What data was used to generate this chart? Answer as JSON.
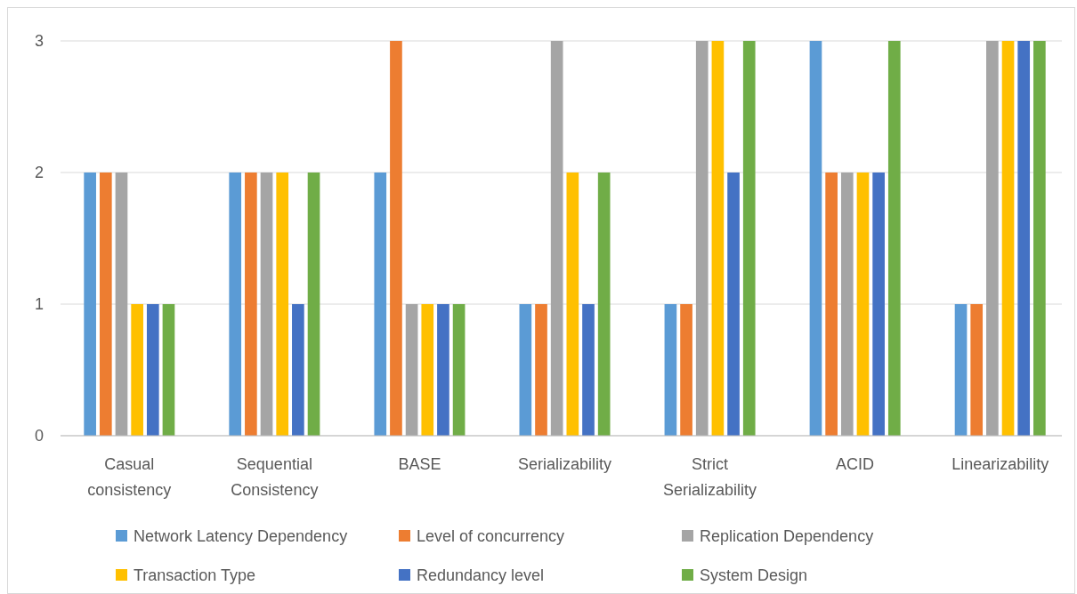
{
  "chart_data": {
    "type": "bar",
    "categories": [
      "Casual consistency",
      "Sequential Consistency",
      "BASE",
      "Serializability",
      "Strict Serializability",
      "ACID",
      "Linearizability"
    ],
    "series": [
      {
        "name": "Network Latency Dependency",
        "color": "#5b9bd5",
        "values": [
          2,
          2,
          2,
          1,
          1,
          3,
          1
        ]
      },
      {
        "name": "Level of concurrency",
        "color": "#ed7d31",
        "values": [
          2,
          2,
          3,
          1,
          1,
          2,
          1
        ]
      },
      {
        "name": "Replication Dependency",
        "color": "#a5a5a5",
        "values": [
          2,
          2,
          1,
          3,
          3,
          2,
          3
        ]
      },
      {
        "name": "Transaction Type",
        "color": "#ffc000",
        "values": [
          1,
          2,
          1,
          2,
          3,
          2,
          3
        ]
      },
      {
        "name": "Redundancy level",
        "color": "#4472c4",
        "values": [
          1,
          1,
          1,
          1,
          2,
          2,
          3
        ]
      },
      {
        "name": "System Design",
        "color": "#70ad47",
        "values": [
          1,
          2,
          1,
          2,
          3,
          3,
          3
        ]
      }
    ],
    "ylim": [
      0,
      3
    ],
    "yticks": [
      0,
      1,
      2,
      3
    ],
    "grid": "y",
    "legend": "bottom"
  }
}
